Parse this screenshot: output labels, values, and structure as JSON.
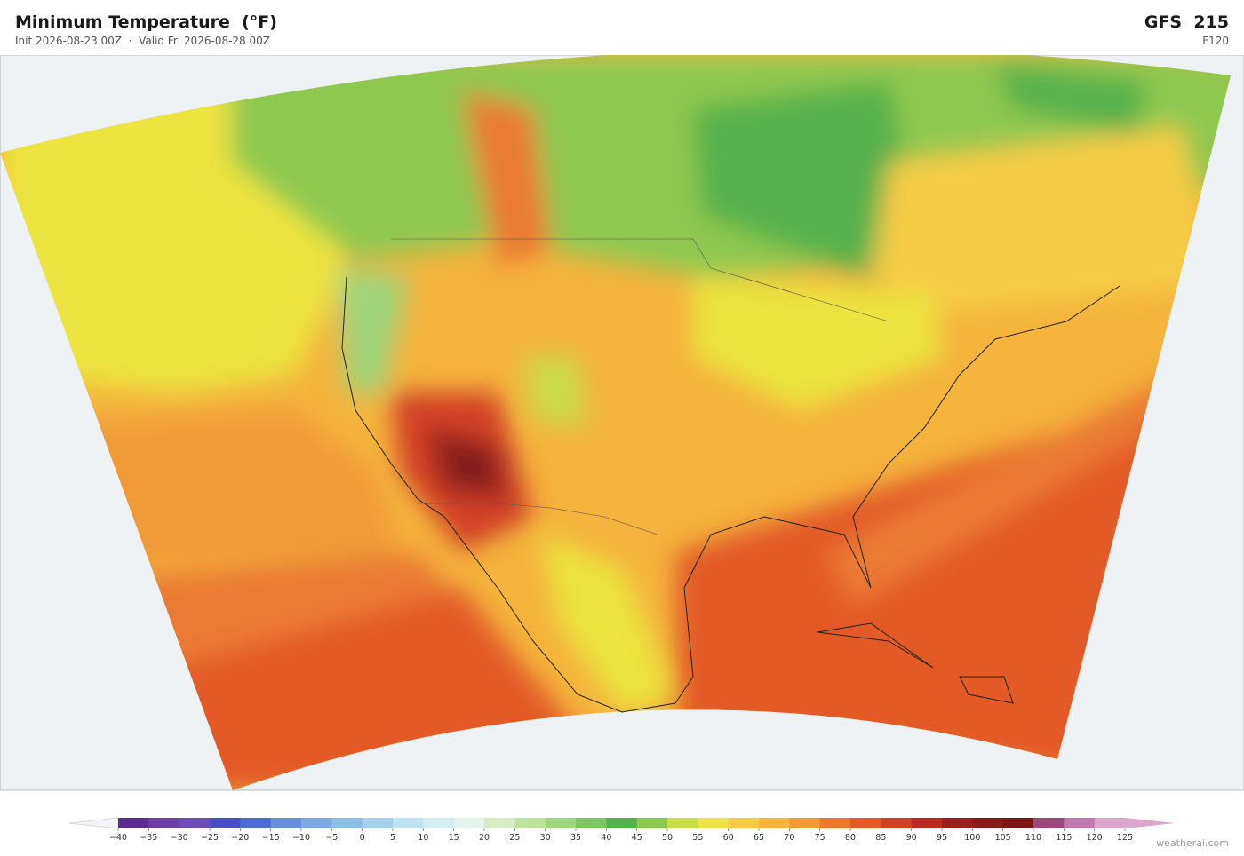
{
  "header": {
    "title": "Minimum Temperature  (°F)",
    "subtitle": "Init 2026-08-23 00Z  ·  Valid Fri 2026-08-28 00Z",
    "model": "GFS  215",
    "forecast_hour": "F120"
  },
  "colorbar": {
    "ticks": [
      {
        "value": -40,
        "label": "−40"
      },
      {
        "value": -35,
        "label": "−35"
      },
      {
        "value": -30,
        "label": "−30"
      },
      {
        "value": -25,
        "label": "−25"
      },
      {
        "value": -20,
        "label": "−20"
      },
      {
        "value": -15,
        "label": "−15"
      },
      {
        "value": -10,
        "label": "−10"
      },
      {
        "value": -5,
        "label": "−5"
      },
      0,
      5,
      10,
      15,
      20,
      25,
      30,
      35,
      40,
      45,
      50,
      55,
      60,
      65,
      70,
      75,
      80,
      85,
      90,
      95,
      100,
      105,
      110,
      115,
      120,
      125
    ],
    "colors": [
      "#5a2d8f",
      "#6a3fa0",
      "#6b4db5",
      "#4a4fc0",
      "#4e6bd0",
      "#6a8fd8",
      "#80a8e0",
      "#90bde3",
      "#a8d0ea",
      "#c0e2f0",
      "#d5eef2",
      "#e6f4ee",
      "#d8ecc8",
      "#bde39f",
      "#9fd57e",
      "#7fc563",
      "#55b04e",
      "#8dc84f",
      "#c9dc4a",
      "#ece441",
      "#f5cb45",
      "#f4b43d",
      "#f09a38",
      "#eb7a30",
      "#e35a28",
      "#d23f25",
      "#b62a22",
      "#9b1e1e",
      "#861a1c",
      "#7a1519",
      "#9a4a7a",
      "#c07ab0",
      "#d9a6cc"
    ],
    "under_color": "#f4f4f8",
    "over_color": "#d9a6cc"
  },
  "watermark": "weatherai.com"
}
